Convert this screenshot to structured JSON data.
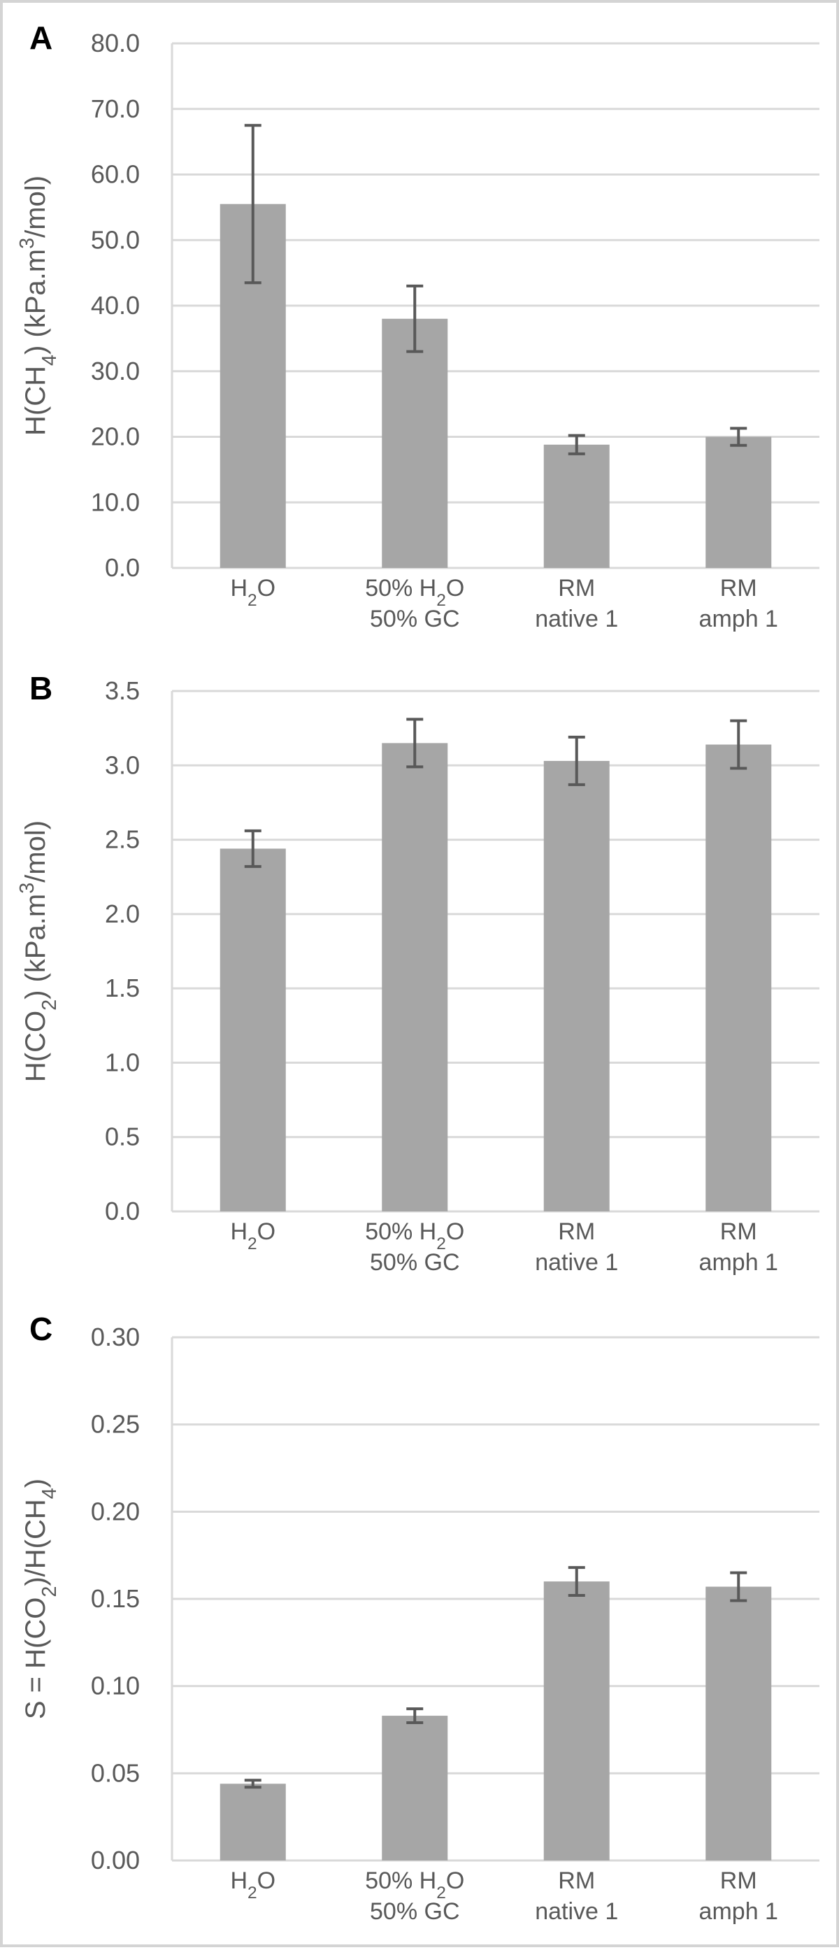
{
  "colors": {
    "bar": "#a6a6a6",
    "grid": "#d9d9d9",
    "error_bar": "#595959",
    "text": "#595959"
  },
  "chart_data": [
    {
      "type": "bar",
      "panel": "A",
      "ylabel_parts": [
        {
          "t": "H(CH",
          "sub": false
        },
        {
          "t": "4",
          "sub": true
        },
        {
          "t": ") (kPa.m",
          "sub": false
        },
        {
          "t": "3",
          "sup": true
        },
        {
          "t": "/mol)",
          "sub": false
        }
      ],
      "categories": [
        [
          {
            "t": "H",
            "sub": false
          },
          {
            "t": "2",
            "sub": true
          },
          {
            "t": "O",
            "sub": false
          }
        ],
        [
          {
            "t": "50% H",
            "sub": false
          },
          {
            "t": "2",
            "sub": true
          },
          {
            "t": "O",
            "sub": false
          },
          {
            "br": true
          },
          {
            "t": "50% GC",
            "sub": false
          }
        ],
        [
          {
            "t": "RM",
            "sub": false
          },
          {
            "br": true
          },
          {
            "t": "native 1",
            "sub": false
          }
        ],
        [
          {
            "t": "RM",
            "sub": false
          },
          {
            "br": true
          },
          {
            "t": "amph 1",
            "sub": false
          }
        ]
      ],
      "values": [
        55.5,
        38.0,
        18.8,
        20.0
      ],
      "errors": [
        12.0,
        5.0,
        1.4,
        1.3
      ],
      "ylim": [
        0,
        80
      ],
      "yticks": [
        "0.0",
        "10.0",
        "20.0",
        "30.0",
        "40.0",
        "50.0",
        "60.0",
        "70.0",
        "80.0"
      ],
      "grid": true
    },
    {
      "type": "bar",
      "panel": "B",
      "ylabel_parts": [
        {
          "t": "H(CO",
          "sub": false
        },
        {
          "t": "2",
          "sub": true
        },
        {
          "t": ") (kPa.m",
          "sub": false
        },
        {
          "t": "3",
          "sup": true
        },
        {
          "t": "/mol)",
          "sub": false
        }
      ],
      "categories": [
        [
          {
            "t": "H",
            "sub": false
          },
          {
            "t": "2",
            "sub": true
          },
          {
            "t": "O",
            "sub": false
          }
        ],
        [
          {
            "t": "50% H",
            "sub": false
          },
          {
            "t": "2",
            "sub": true
          },
          {
            "t": "O",
            "sub": false
          },
          {
            "br": true
          },
          {
            "t": "50% GC",
            "sub": false
          }
        ],
        [
          {
            "t": "RM",
            "sub": false
          },
          {
            "br": true
          },
          {
            "t": "native 1",
            "sub": false
          }
        ],
        [
          {
            "t": "RM",
            "sub": false
          },
          {
            "br": true
          },
          {
            "t": "amph 1",
            "sub": false
          }
        ]
      ],
      "values": [
        2.44,
        3.15,
        3.03,
        3.14
      ],
      "errors": [
        0.12,
        0.16,
        0.16,
        0.16
      ],
      "ylim": [
        0,
        3.5
      ],
      "yticks": [
        "0.0",
        "0.5",
        "1.0",
        "1.5",
        "2.0",
        "2.5",
        "3.0",
        "3.5"
      ],
      "grid": true
    },
    {
      "type": "bar",
      "panel": "C",
      "ylabel_parts": [
        {
          "t": "S = H(CO",
          "sub": false
        },
        {
          "t": "2",
          "sub": true
        },
        {
          "t": ")/H(CH",
          "sub": false
        },
        {
          "t": "4",
          "sub": true
        },
        {
          "t": ")",
          "sub": false
        }
      ],
      "categories": [
        [
          {
            "t": "H",
            "sub": false
          },
          {
            "t": "2",
            "sub": true
          },
          {
            "t": "O",
            "sub": false
          }
        ],
        [
          {
            "t": "50% H",
            "sub": false
          },
          {
            "t": "2",
            "sub": true
          },
          {
            "t": "O",
            "sub": false
          },
          {
            "br": true
          },
          {
            "t": "50% GC",
            "sub": false
          }
        ],
        [
          {
            "t": "RM",
            "sub": false
          },
          {
            "br": true
          },
          {
            "t": "native 1",
            "sub": false
          }
        ],
        [
          {
            "t": "RM",
            "sub": false
          },
          {
            "br": true
          },
          {
            "t": "amph 1",
            "sub": false
          }
        ]
      ],
      "values": [
        0.044,
        0.083,
        0.16,
        0.157
      ],
      "errors": [
        0.002,
        0.004,
        0.008,
        0.008
      ],
      "ylim": [
        0,
        0.3
      ],
      "yticks": [
        "0.00",
        "0.05",
        "0.10",
        "0.15",
        "0.20",
        "0.25",
        "0.30"
      ],
      "grid": true
    }
  ]
}
